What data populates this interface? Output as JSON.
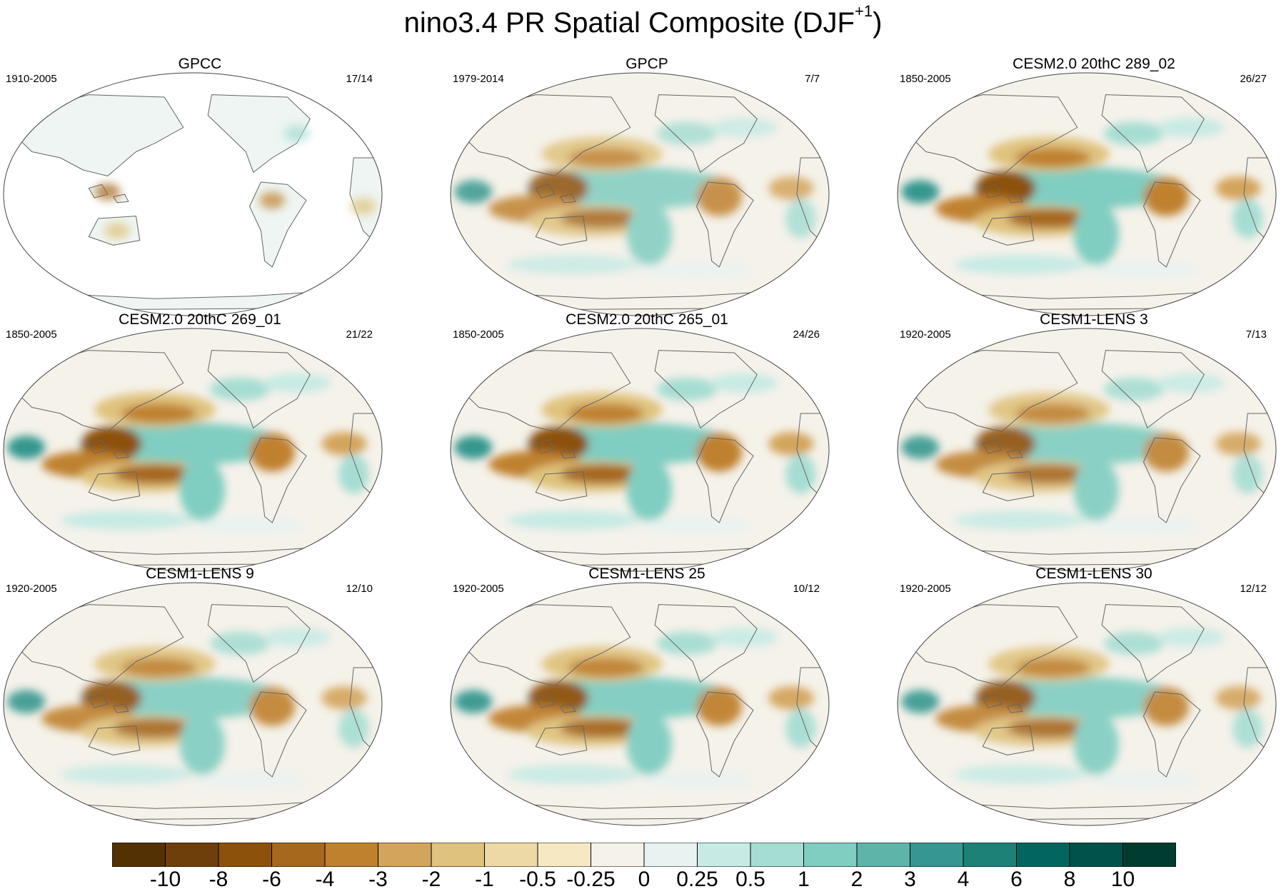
{
  "figure": {
    "title_main": "nino3.4 PR Spatial Composite (DJF",
    "title_sup": "+1",
    "title_close": ")"
  },
  "panels": [
    {
      "title": "GPCC",
      "range": "1910-2005",
      "count": "17/14",
      "land_only": true,
      "strength": 0.55
    },
    {
      "title": "GPCP",
      "range": "1979-2014",
      "count": "7/7",
      "land_only": false,
      "strength": 0.85
    },
    {
      "title": "CESM2.0 20thC 289_02",
      "range": "1850-2005",
      "count": "26/27",
      "land_only": false,
      "strength": 1.0
    },
    {
      "title": "CESM2.0 20thC 269_01",
      "range": "1850-2005",
      "count": "21/22",
      "land_only": false,
      "strength": 1.0
    },
    {
      "title": "CESM2.0 20thC 265_01",
      "range": "1850-2005",
      "count": "24/26",
      "land_only": false,
      "strength": 1.0
    },
    {
      "title": "CESM1-LENS 3",
      "range": "1920-2005",
      "count": "7/13",
      "land_only": false,
      "strength": 0.9
    },
    {
      "title": "CESM1-LENS 9",
      "range": "1920-2005",
      "count": "12/10",
      "land_only": false,
      "strength": 0.9
    },
    {
      "title": "CESM1-LENS 25",
      "range": "1920-2005",
      "count": "10/12",
      "land_only": false,
      "strength": 0.95
    },
    {
      "title": "CESM1-LENS 30",
      "range": "1920-2005",
      "count": "12/12",
      "land_only": false,
      "strength": 0.9
    }
  ],
  "colorbar": {
    "colors": [
      "#543005",
      "#6e3f0a",
      "#8c510a",
      "#a6681c",
      "#bf812d",
      "#d3a45b",
      "#dfc27d",
      "#ecd9a6",
      "#f6e8c3",
      "#f5f2ea",
      "#e8f3f1",
      "#c7eae5",
      "#a6ddd3",
      "#80cdc1",
      "#5fb4a9",
      "#35978f",
      "#1d8178",
      "#01665e",
      "#00524a",
      "#003c30"
    ],
    "labels": [
      "-10",
      "-8",
      "-6",
      "-4",
      "-3",
      "-2",
      "-1",
      "-0.5",
      "-0.25",
      "0",
      "0.25",
      "0.5",
      "1",
      "2",
      "3",
      "4",
      "6",
      "8",
      "10"
    ]
  }
}
